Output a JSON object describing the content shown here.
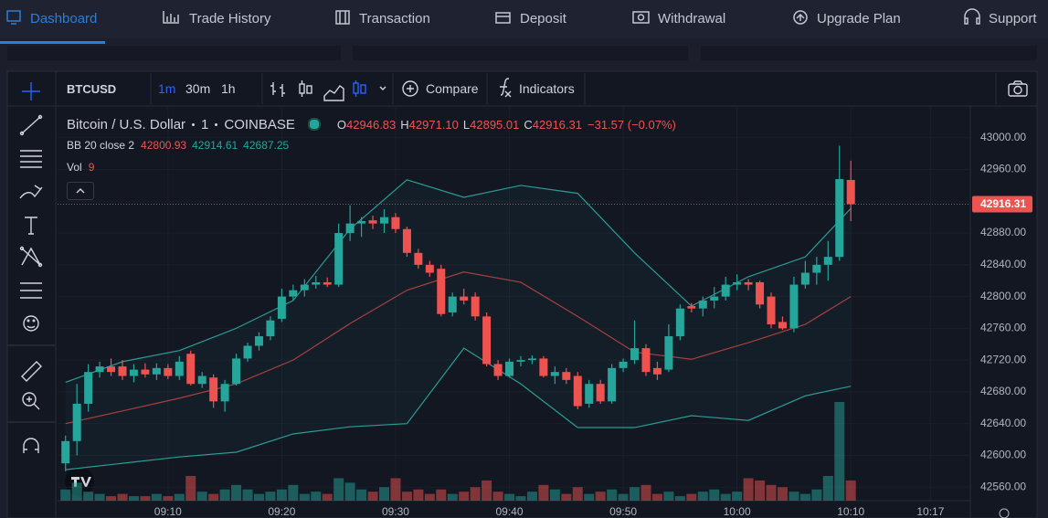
{
  "nav": {
    "items": [
      "Dashboard",
      "Trade History",
      "Transaction",
      "Deposit",
      "Withdrawal",
      "Upgrade Plan",
      "Support"
    ],
    "active": 0
  },
  "toolbar": {
    "symbol": "BTCUSD",
    "intervals": [
      "1m",
      "30m",
      "1h"
    ],
    "active_interval": 0,
    "compare": "Compare",
    "indicators": "Indicators"
  },
  "chart": {
    "type": "candlestick",
    "title": "Bitcoin / U.S. Dollar",
    "interval": "1",
    "exchange": "COINBASE",
    "ohlc": [
      {
        "label": "O",
        "value": "42946.83"
      },
      {
        "label": "H",
        "value": "42971.10"
      },
      {
        "label": "L",
        "value": "42895.01"
      },
      {
        "label": "C",
        "value": "42916.31"
      }
    ],
    "change": "−31.57 (−0.07%)",
    "bb": {
      "label": "BB 20 close 2",
      "values": [
        "42800.93",
        "42914.61",
        "42687.25"
      ]
    },
    "vol": {
      "label": "Vol",
      "value": "9"
    },
    "up_color": "#26a69a",
    "down_color": "#ef5350",
    "band_color": "#2a9d94",
    "basis_color": "#a8403e",
    "grid": true,
    "candles": {
      "open": [
        42590,
        42618,
        42665,
        42705,
        42712,
        42712,
        42700,
        42708,
        42702,
        42710,
        42700,
        42728,
        42690,
        42698,
        42668,
        42690,
        42722,
        42738,
        42750,
        42772,
        42800,
        42808,
        42815,
        42818,
        42815,
        42880,
        42892,
        42896,
        42892,
        42900,
        42885,
        42855,
        42840,
        42835,
        42780,
        42800,
        42800,
        42775,
        42715,
        42700,
        42718,
        42720,
        42722,
        42700,
        42705,
        42700,
        42665,
        42690,
        42668,
        42710,
        42720,
        42735,
        42710,
        42708,
        42750,
        42788,
        42785,
        42795,
        42800,
        42815,
        42818,
        42818,
        42800,
        42768,
        42760,
        42815,
        42830,
        42840,
        42850,
        42946.83
      ],
      "high": [
        42625,
        42690,
        42715,
        42718,
        42722,
        42720,
        42715,
        42716,
        42716,
        42715,
        42725,
        42732,
        42705,
        42702,
        42695,
        42728,
        42742,
        42755,
        42775,
        42810,
        42815,
        42822,
        42826,
        42824,
        42892,
        42915,
        42900,
        42902,
        42910,
        42905,
        42888,
        42860,
        42845,
        42840,
        42805,
        42810,
        42805,
        42780,
        42720,
        42722,
        42725,
        42726,
        42725,
        42712,
        42710,
        42705,
        42695,
        42695,
        42715,
        42722,
        42770,
        42740,
        42718,
        42765,
        42790,
        42792,
        42800,
        42812,
        42825,
        42828,
        42822,
        42820,
        42805,
        42775,
        42825,
        42845,
        42850,
        42870,
        42990,
        42971.1
      ],
      "low": [
        42580,
        42600,
        42655,
        42698,
        42700,
        42695,
        42692,
        42698,
        42695,
        42696,
        42695,
        42688,
        42685,
        42660,
        42655,
        42688,
        42718,
        42732,
        42745,
        42768,
        42795,
        42800,
        42810,
        42812,
        42812,
        42870,
        42875,
        42885,
        42880,
        42880,
        42850,
        42835,
        42825,
        42775,
        42775,
        42790,
        42770,
        42712,
        42695,
        42698,
        42712,
        42715,
        42698,
        42690,
        42690,
        42658,
        42660,
        42665,
        42665,
        42705,
        42715,
        42700,
        42695,
        42705,
        42745,
        42780,
        42775,
        42785,
        42795,
        42808,
        42808,
        42785,
        42760,
        42758,
        42755,
        42810,
        42815,
        42820,
        42845,
        42895.01
      ],
      "close": [
        42618,
        42665,
        42705,
        42712,
        42705,
        42700,
        42708,
        42702,
        42710,
        42700,
        42718,
        42690,
        42700,
        42668,
        42690,
        42722,
        42738,
        42750,
        42770,
        42800,
        42808,
        42815,
        42818,
        42815,
        42880,
        42892,
        42895,
        42892,
        42900,
        42885,
        42855,
        42840,
        42830,
        42778,
        42800,
        42795,
        42775,
        42715,
        42700,
        42718,
        42720,
        42722,
        42700,
        42705,
        42695,
        42662,
        42690,
        42668,
        42710,
        42718,
        42735,
        42705,
        42702,
        42750,
        42785,
        42785,
        42795,
        42800,
        42815,
        42818,
        42815,
        42790,
        42765,
        42760,
        42815,
        42830,
        42840,
        42850,
        42947.88,
        42916.31
      ]
    },
    "volume": [
      5,
      8,
      4,
      3,
      2,
      3,
      2,
      2,
      3,
      2,
      3,
      11,
      4,
      3,
      5,
      7,
      5,
      3,
      4,
      5,
      7,
      3,
      4,
      3,
      10,
      8,
      5,
      4,
      6,
      10,
      4,
      5,
      3,
      5,
      3,
      4,
      6,
      9,
      4,
      3,
      2,
      4,
      7,
      5,
      3,
      6,
      3,
      4,
      5,
      3,
      6,
      7,
      3,
      4,
      2,
      3,
      4,
      5,
      3,
      4,
      10,
      9,
      7,
      6,
      4,
      3,
      5,
      11,
      44,
      9
    ],
    "volume_lim": [
      0,
      176
    ],
    "bands": {
      "x": [
        0,
        5,
        10,
        15,
        20,
        25,
        30,
        35,
        40,
        45,
        50,
        55,
        60,
        65,
        69
      ],
      "upper": [
        42692,
        42718,
        42732,
        42760,
        42795,
        42885,
        42947,
        42925,
        42940,
        42930,
        42855,
        42788,
        42825,
        42850,
        42911
      ],
      "basis": [
        42640,
        42656,
        42672,
        42690,
        42720,
        42766,
        42808,
        42831,
        42818,
        42775,
        42730,
        42721,
        42742,
        42765,
        42800
      ],
      "lower": [
        42582,
        42590,
        42598,
        42604,
        42627,
        42636,
        42640,
        42735,
        42690,
        42635,
        42635,
        42650,
        42644,
        42675,
        42687
      ]
    },
    "last_price": {
      "value": 42916.31,
      "label": "42916.31"
    },
    "xlim": [
      -0.7,
      79.5
    ],
    "xticks": [
      {
        "value": 9,
        "label": "09:10"
      },
      {
        "value": 19,
        "label": "09:20"
      },
      {
        "value": 29,
        "label": "09:30"
      },
      {
        "value": 39,
        "label": "09:40"
      },
      {
        "value": 49,
        "label": "09:50"
      },
      {
        "value": 59,
        "label": "10:00"
      },
      {
        "value": 69,
        "label": "10:10"
      },
      {
        "value": 76,
        "label": "10:17"
      }
    ],
    "ylim": [
      42543,
      43040
    ],
    "yticks": [
      {
        "value": 42560,
        "label": "42560.00"
      },
      {
        "value": 42600,
        "label": "42600.00"
      },
      {
        "value": 42640,
        "label": "42640.00"
      },
      {
        "value": 42680,
        "label": "42680.00"
      },
      {
        "value": 42720,
        "label": "42720.00"
      },
      {
        "value": 42760,
        "label": "42760.00"
      },
      {
        "value": 42800,
        "label": "42800.00"
      },
      {
        "value": 42840,
        "label": "42840.00"
      },
      {
        "value": 42880,
        "label": "42880.00"
      },
      {
        "value": 42920,
        "label": "42920.00"
      },
      {
        "value": 42960,
        "label": "42960.00"
      },
      {
        "value": 43000,
        "label": "43000.00"
      }
    ]
  }
}
